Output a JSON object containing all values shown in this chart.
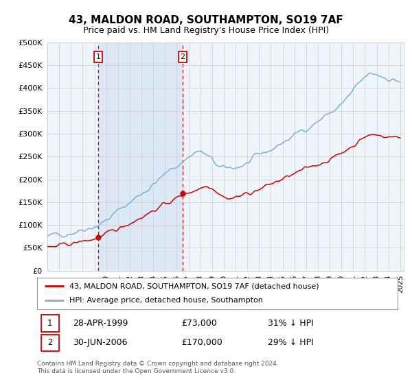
{
  "title": "43, MALDON ROAD, SOUTHAMPTON, SO19 7AF",
  "subtitle": "Price paid vs. HM Land Registry's House Price Index (HPI)",
  "legend_line1": "43, MALDON ROAD, SOUTHAMPTON, SO19 7AF (detached house)",
  "legend_line2": "HPI: Average price, detached house, Southampton",
  "label1_date": "28-APR-1999",
  "label1_price": "£73,000",
  "label1_hpi": "31% ↓ HPI",
  "label2_date": "30-JUN-2006",
  "label2_price": "£170,000",
  "label2_hpi": "29% ↓ HPI",
  "footer": "Contains HM Land Registry data © Crown copyright and database right 2024.\nThis data is licensed under the Open Government Licence v3.0.",
  "red_color": "#cc0000",
  "blue_color": "#7ab0d4",
  "bg_color": "#ffffff",
  "plot_bg_color": "#f0f4fb",
  "grid_color": "#cccccc",
  "shade_color": "#dce8f5",
  "ylim": [
    0,
    500000
  ],
  "yticks": [
    0,
    50000,
    100000,
    150000,
    200000,
    250000,
    300000,
    350000,
    400000,
    450000,
    500000
  ],
  "sale1_year": 1999.32,
  "sale1_price": 73000,
  "sale2_year": 2006.5,
  "sale2_price": 170000,
  "xmin": 1995,
  "xmax": 2025
}
